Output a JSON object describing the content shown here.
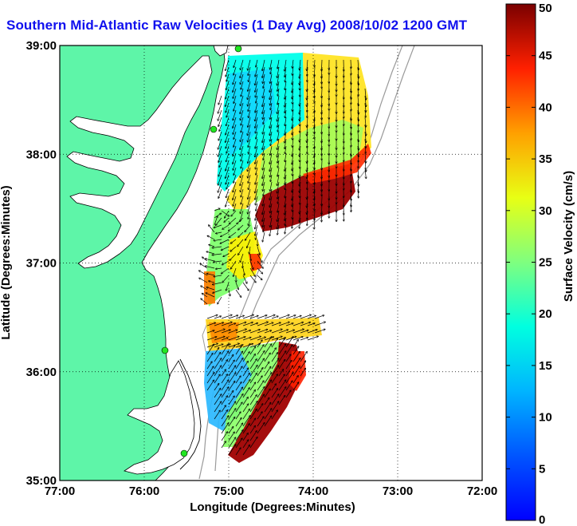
{
  "title": "Southern Mid-Atlantic Raw Velocities (1 Day Avg) 2008/10/02 1200 GMT",
  "map": {
    "xlabel": "Longitude (Degrees:Minutes)",
    "ylabel": "Latitude (Degrees:Minutes)",
    "lon_range": [
      -77,
      -72
    ],
    "lat_range": [
      35,
      39
    ],
    "lon_ticks": [
      "77:00",
      "76:00",
      "75:00",
      "74:00",
      "73:00",
      "72:00"
    ],
    "lat_ticks": [
      "39:00",
      "38:00",
      "37:00",
      "36:00",
      "35:00"
    ],
    "grid": "dotted",
    "land_color": "#5ef5a8",
    "water_color": "#ffffff",
    "coast_color": "#000000",
    "isobath_color": "#9a9a9a",
    "station_color": "#22e622",
    "stations": [
      "station-1",
      "station-2",
      "station-3",
      "station-4"
    ],
    "field_regions": [
      {
        "name": "north-zone-slow",
        "speed_cm_s": 12
      },
      {
        "name": "north-zone-mid",
        "speed_cm_s": 26
      },
      {
        "name": "north-zone-fast",
        "speed_cm_s": 47
      },
      {
        "name": "middle-zone",
        "speed_cm_s": 20
      },
      {
        "name": "south-zone-slow",
        "speed_cm_s": 11
      },
      {
        "name": "south-zone-fast",
        "speed_cm_s": 46
      }
    ]
  },
  "colorbar": {
    "label": "Surface Velocity (cm/s)",
    "min": 0,
    "max": 50,
    "ticks": [
      "0",
      "5",
      "10",
      "15",
      "20",
      "25",
      "30",
      "35",
      "40",
      "45",
      "50"
    ],
    "colormap": "jet"
  }
}
